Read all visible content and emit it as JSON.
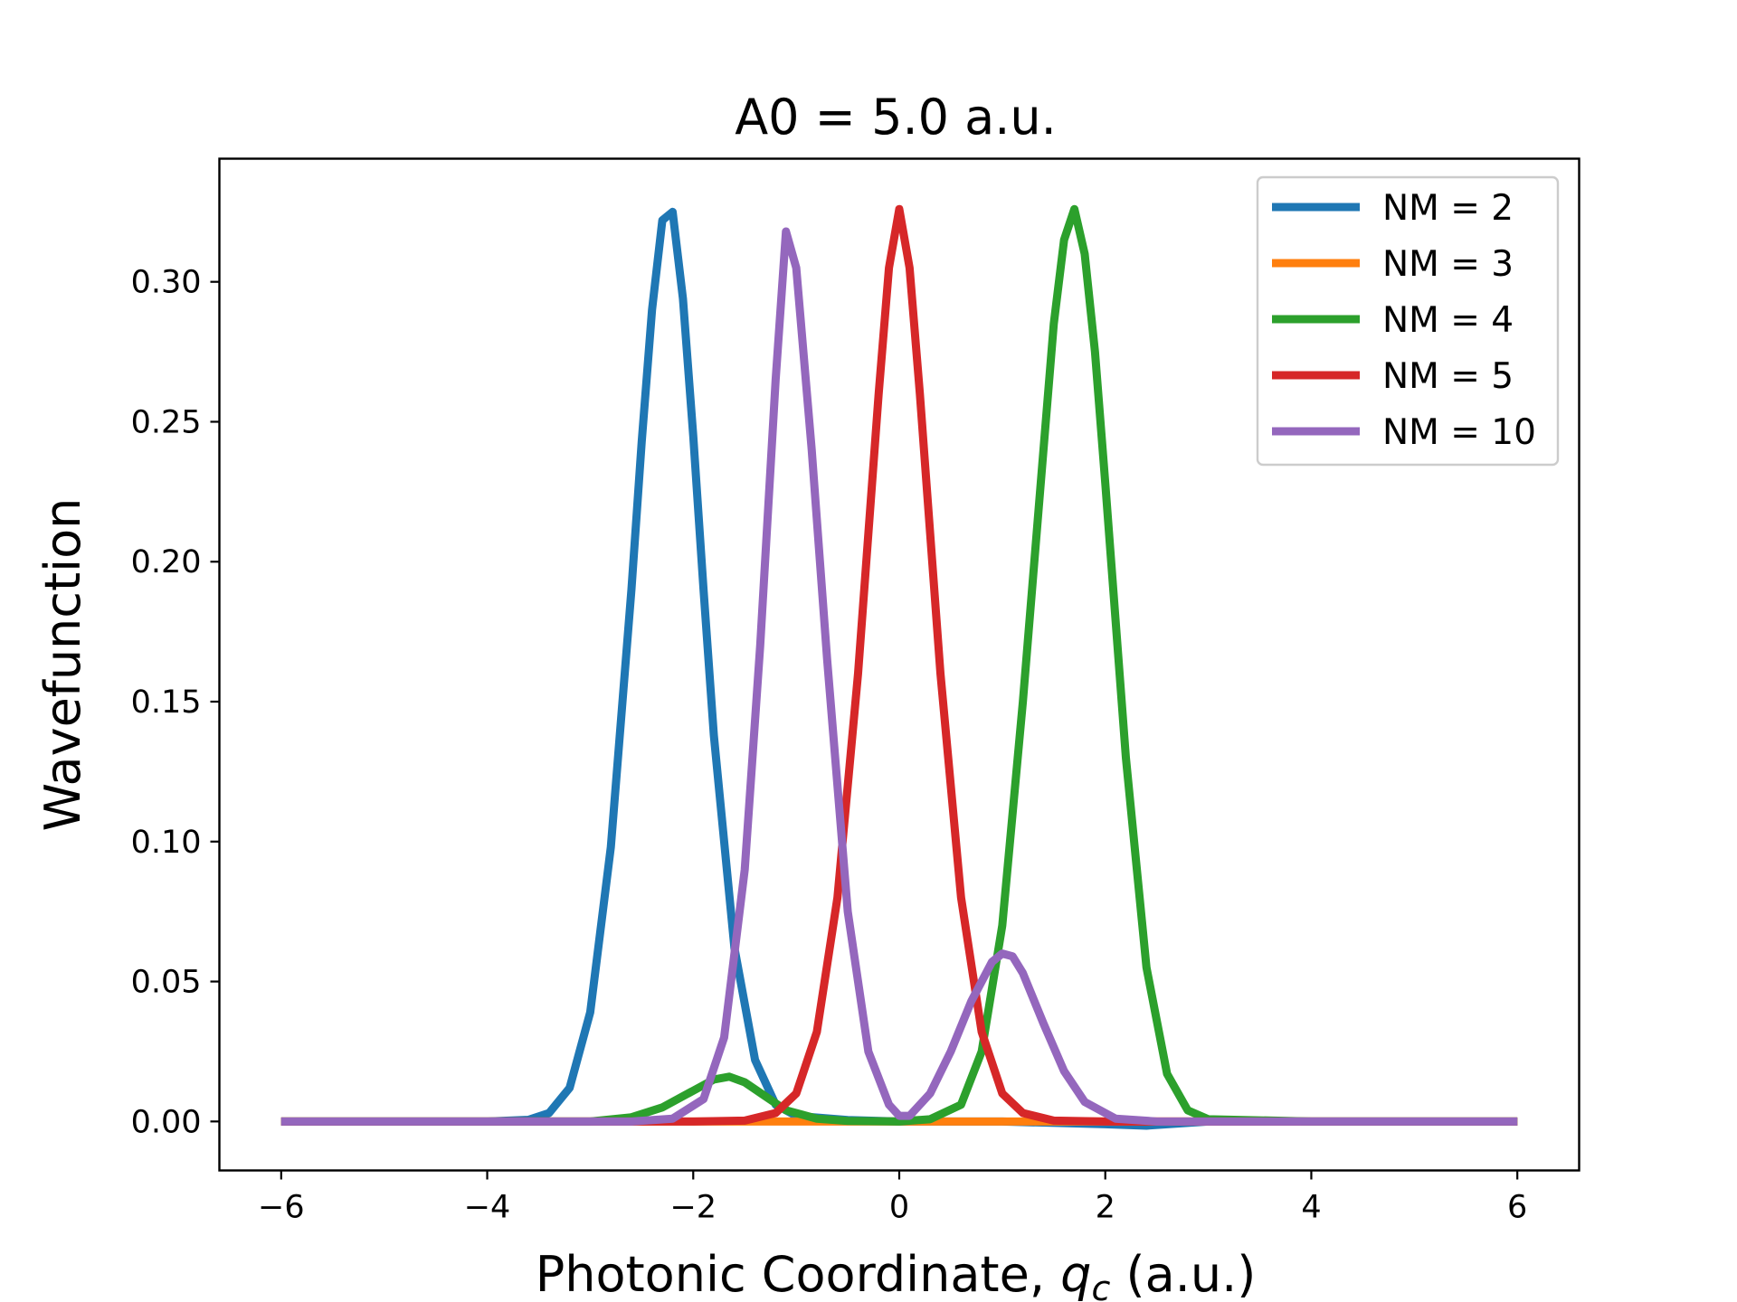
{
  "chart_data": {
    "type": "line",
    "title": "A0 = 5.0 a.u.",
    "xlabel_main": "Photonic Coordinate, ",
    "xlabel_var": "q",
    "xlabel_sub": "c",
    "xlabel_unit": " (a.u.)",
    "ylabel": "Wavefunction",
    "xlim": [
      -6.6,
      6.6
    ],
    "ylim": [
      -0.0175,
      0.344
    ],
    "xticks": [
      -6,
      -4,
      -2,
      0,
      2,
      4,
      6
    ],
    "xtick_labels": [
      "−6",
      "−4",
      "−2",
      "0",
      "2",
      "4",
      "6"
    ],
    "yticks": [
      0.0,
      0.05,
      0.1,
      0.15,
      0.2,
      0.25,
      0.3
    ],
    "ytick_labels": [
      "0.00",
      "0.05",
      "0.10",
      "0.15",
      "0.20",
      "0.25",
      "0.30"
    ],
    "grid": false,
    "legend_position": "upper right",
    "series": [
      {
        "name": "NM = 2",
        "color": "#1f77b4",
        "x": [
          -6.0,
          -5.0,
          -4.0,
          -3.6,
          -3.4,
          -3.2,
          -3.0,
          -2.8,
          -2.6,
          -2.5,
          -2.4,
          -2.3,
          -2.2,
          -2.1,
          -2.0,
          -1.9,
          -1.8,
          -1.6,
          -1.4,
          -1.2,
          -1.0,
          -0.5,
          0.0,
          1.0,
          2.0,
          2.4,
          3.0,
          4.0,
          6.0
        ],
        "y": [
          0.0,
          0.0,
          0.0,
          0.0006,
          0.003,
          0.012,
          0.039,
          0.098,
          0.19,
          0.243,
          0.29,
          0.322,
          0.325,
          0.294,
          0.245,
          0.19,
          0.138,
          0.062,
          0.022,
          0.006,
          0.002,
          0.0005,
          0.0,
          0.0,
          -0.001,
          -0.0015,
          0.0,
          0.0,
          0.0
        ]
      },
      {
        "name": "NM = 3",
        "color": "#ff7f0e",
        "x": [
          -6.0,
          6.0
        ],
        "y": [
          0.0,
          0.0
        ]
      },
      {
        "name": "NM = 4",
        "color": "#2ca02c",
        "x": [
          -6.0,
          -4.0,
          -3.0,
          -2.6,
          -2.3,
          -2.0,
          -1.8,
          -1.65,
          -1.5,
          -1.3,
          -1.1,
          -0.8,
          -0.5,
          0.0,
          0.3,
          0.6,
          0.8,
          1.0,
          1.2,
          1.4,
          1.5,
          1.6,
          1.7,
          1.8,
          1.9,
          2.0,
          2.2,
          2.4,
          2.6,
          2.8,
          3.0,
          4.0,
          6.0
        ],
        "y": [
          0.0,
          0.0,
          0.0,
          0.0015,
          0.005,
          0.011,
          0.015,
          0.016,
          0.014,
          0.009,
          0.004,
          0.001,
          0.0002,
          0.0,
          0.0008,
          0.006,
          0.025,
          0.07,
          0.15,
          0.24,
          0.285,
          0.315,
          0.326,
          0.31,
          0.275,
          0.228,
          0.13,
          0.055,
          0.017,
          0.004,
          0.0008,
          0.0,
          0.0
        ]
      },
      {
        "name": "NM = 5",
        "color": "#d62728",
        "x": [
          -6.0,
          -2.0,
          -1.5,
          -1.2,
          -1.0,
          -0.8,
          -0.6,
          -0.4,
          -0.3,
          -0.2,
          -0.1,
          0.0,
          0.1,
          0.2,
          0.3,
          0.4,
          0.6,
          0.8,
          1.0,
          1.2,
          1.5,
          2.0,
          6.0
        ],
        "y": [
          0.0,
          0.0,
          0.0003,
          0.003,
          0.01,
          0.032,
          0.08,
          0.16,
          0.21,
          0.26,
          0.305,
          0.326,
          0.305,
          0.26,
          0.21,
          0.16,
          0.08,
          0.032,
          0.01,
          0.003,
          0.0003,
          0.0,
          0.0
        ]
      },
      {
        "name": "NM = 10",
        "color": "#9467bd",
        "x": [
          -6.0,
          -2.6,
          -2.2,
          -1.9,
          -1.7,
          -1.5,
          -1.35,
          -1.2,
          -1.1,
          -1.0,
          -0.85,
          -0.7,
          -0.5,
          -0.3,
          -0.1,
          0.0,
          0.1,
          0.3,
          0.5,
          0.7,
          0.9,
          1.0,
          1.1,
          1.2,
          1.4,
          1.6,
          1.8,
          2.1,
          2.5,
          6.0
        ],
        "y": [
          0.0,
          0.0,
          0.001,
          0.008,
          0.03,
          0.09,
          0.17,
          0.265,
          0.318,
          0.305,
          0.24,
          0.165,
          0.075,
          0.025,
          0.006,
          0.002,
          0.002,
          0.01,
          0.025,
          0.043,
          0.057,
          0.06,
          0.059,
          0.053,
          0.035,
          0.018,
          0.007,
          0.001,
          0.0,
          0.0
        ]
      }
    ]
  }
}
